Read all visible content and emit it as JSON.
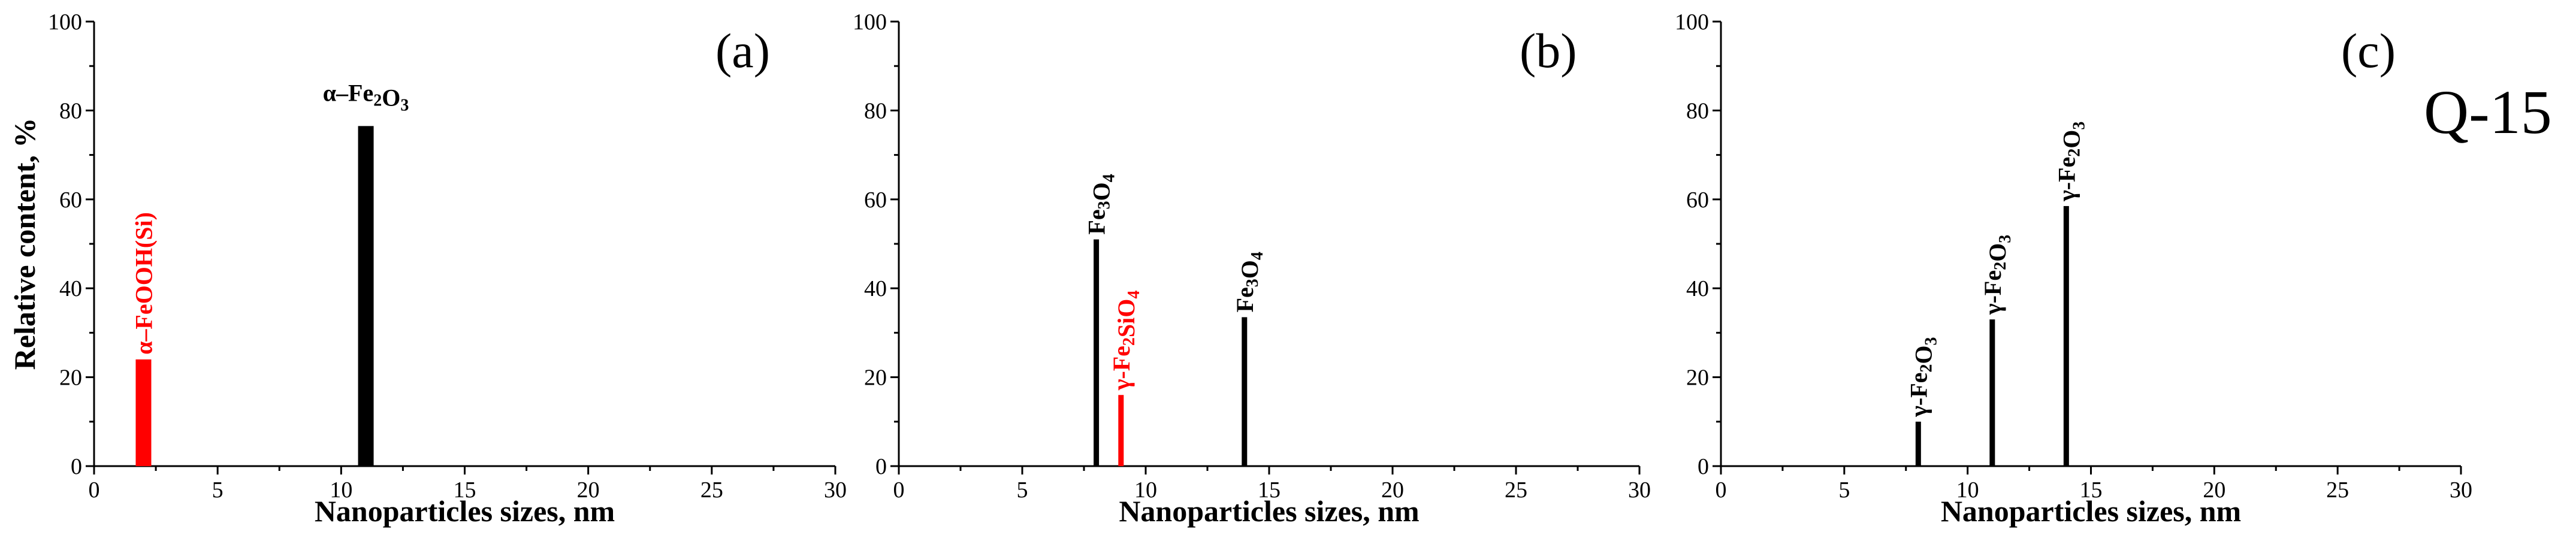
{
  "figure": {
    "sample_label": "Q-15"
  },
  "chart_data": [
    {
      "type": "bar",
      "panel_label": "(a)",
      "ylabel": "Relative content, %",
      "xlabel": "Nanoparticles sizes, nm",
      "xlim": [
        0,
        30
      ],
      "ylim": [
        0,
        100
      ],
      "xticks": [
        "0",
        "5",
        "10",
        "15",
        "20",
        "25",
        "30"
      ],
      "yticks": [
        "0",
        "20",
        "40",
        "60",
        "80",
        "100"
      ],
      "bars": [
        {
          "x": 2,
          "value": 24,
          "color": "#ff0000",
          "label": "α–FeOOH(Si)",
          "label_parts": [
            {
              "t": "α–FeOOH(Si)",
              "sub": false
            }
          ],
          "label_orientation": "vertical"
        },
        {
          "x": 11,
          "value": 76.5,
          "color": "#000000",
          "label": "α–Fe2O3",
          "label_parts": [
            {
              "t": "α–Fe",
              "sub": false
            },
            {
              "t": "2",
              "sub": true
            },
            {
              "t": "O",
              "sub": false
            },
            {
              "t": "3",
              "sub": true
            }
          ],
          "label_orientation": "horizontal"
        }
      ]
    },
    {
      "type": "bar",
      "panel_label": "(b)",
      "ylabel": "",
      "xlabel": "Nanoparticles sizes, nm",
      "xlim": [
        0,
        30
      ],
      "ylim": [
        0,
        100
      ],
      "xticks": [
        "0",
        "5",
        "10",
        "15",
        "20",
        "25",
        "30"
      ],
      "yticks": [
        "0",
        "20",
        "40",
        "60",
        "80",
        "100"
      ],
      "bars": [
        {
          "x": 8,
          "value": 51,
          "color": "#000000",
          "label": "Fe3O4",
          "label_parts": [
            {
              "t": "Fe",
              "sub": false
            },
            {
              "t": "3",
              "sub": true
            },
            {
              "t": "O",
              "sub": false
            },
            {
              "t": "4",
              "sub": true
            }
          ],
          "label_orientation": "vertical"
        },
        {
          "x": 9,
          "value": 16,
          "color": "#ff0000",
          "label": "γ-Fe2SiO4",
          "label_parts": [
            {
              "t": "γ-Fe",
              "sub": false
            },
            {
              "t": "2",
              "sub": true
            },
            {
              "t": "SiO",
              "sub": false
            },
            {
              "t": "4",
              "sub": true
            }
          ],
          "label_orientation": "vertical"
        },
        {
          "x": 14,
          "value": 33.5,
          "color": "#000000",
          "label": "Fe3O4",
          "label_parts": [
            {
              "t": "Fe",
              "sub": false
            },
            {
              "t": "3",
              "sub": true
            },
            {
              "t": "O",
              "sub": false
            },
            {
              "t": "4",
              "sub": true
            }
          ],
          "label_orientation": "vertical"
        }
      ]
    },
    {
      "type": "bar",
      "panel_label": "(c)",
      "ylabel": "",
      "xlabel": "Nanoparticles sizes, nm",
      "xlim": [
        0,
        30
      ],
      "ylim": [
        0,
        100
      ],
      "xticks": [
        "0",
        "5",
        "10",
        "15",
        "20",
        "25",
        "30"
      ],
      "yticks": [
        "0",
        "20",
        "40",
        "60",
        "80",
        "100"
      ],
      "bars": [
        {
          "x": 8,
          "value": 10,
          "color": "#000000",
          "label": "γ-Fe2O3",
          "label_parts": [
            {
              "t": "γ-Fe",
              "sub": false
            },
            {
              "t": "2",
              "sub": true
            },
            {
              "t": "O",
              "sub": false
            },
            {
              "t": "3",
              "sub": true
            }
          ],
          "label_orientation": "vertical"
        },
        {
          "x": 11,
          "value": 33,
          "color": "#000000",
          "label": "γ-Fe2O3",
          "label_parts": [
            {
              "t": "γ-Fe",
              "sub": false
            },
            {
              "t": "2",
              "sub": true
            },
            {
              "t": "O",
              "sub": false
            },
            {
              "t": "3",
              "sub": true
            }
          ],
          "label_orientation": "vertical"
        },
        {
          "x": 14,
          "value": 58.5,
          "color": "#000000",
          "label": "γ-Fe2O3",
          "label_parts": [
            {
              "t": "γ-Fe",
              "sub": false
            },
            {
              "t": "2",
              "sub": true
            },
            {
              "t": "O",
              "sub": false
            },
            {
              "t": "3",
              "sub": true
            }
          ],
          "label_orientation": "vertical"
        }
      ]
    }
  ]
}
